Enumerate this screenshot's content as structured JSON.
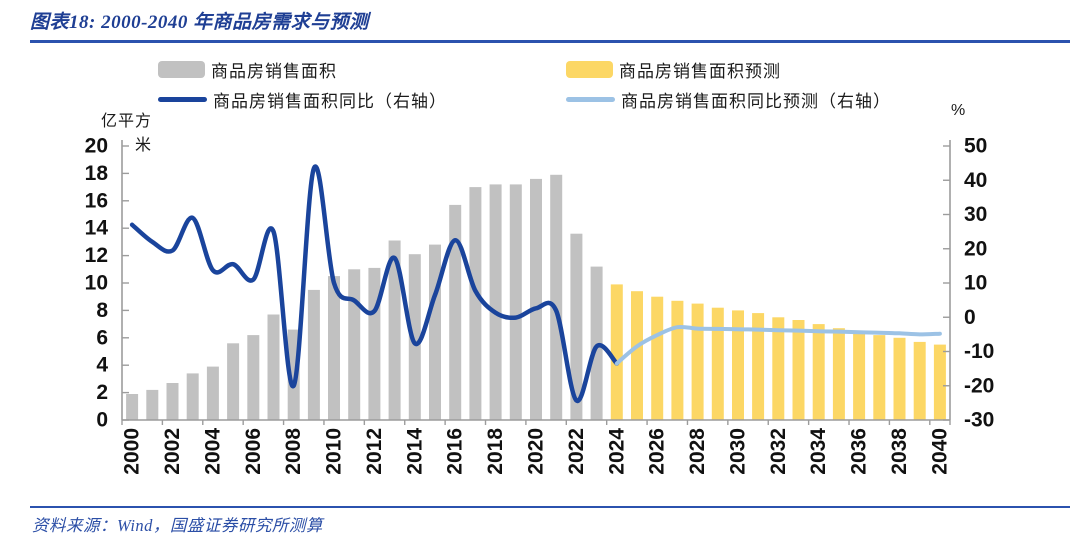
{
  "figure": {
    "title": "图表18: 2000-2040 年商品房需求与预测",
    "source": "资料来源：Wind，国盛证券研究所测算"
  },
  "colors": {
    "accent_blue": "#2b52ae",
    "bar_actual": "#c1c1c1",
    "bar_forecast": "#fcd765",
    "line_actual": "#1a449c",
    "line_forecast": "#9cc2e5",
    "axis_line": "#9c9c9c",
    "tick_label": "#111111"
  },
  "legend": [
    {
      "label": "商品房销售面积",
      "type": "bar",
      "color": "#c1c1c1"
    },
    {
      "label": "商品房销售面积预测",
      "type": "bar",
      "color": "#fcd765"
    },
    {
      "label": "商品房销售面积同比（右轴）",
      "type": "line",
      "color": "#1a449c"
    },
    {
      "label": "商品房销售面积同比预测（右轴）",
      "type": "line",
      "color": "#9cc2e5"
    }
  ],
  "chart_data": {
    "type": "bar",
    "subtype": "combo-bar-line",
    "title": "2000-2040 年商品房需求与预测",
    "left_axis": {
      "unit": "亿平方米",
      "min": 0,
      "max": 20,
      "step": 2,
      "ticks": [
        0,
        2,
        4,
        6,
        8,
        10,
        12,
        14,
        16,
        18,
        20
      ]
    },
    "right_axis": {
      "unit": "%",
      "min": -30,
      "max": 50,
      "step": 10,
      "ticks": [
        -30,
        -20,
        -10,
        0,
        10,
        20,
        30,
        40,
        50
      ]
    },
    "x_start": 2000,
    "x_end": 2040,
    "x_tick_labels": [
      "2000",
      "2002",
      "2004",
      "2006",
      "2008",
      "2010",
      "2012",
      "2014",
      "2016",
      "2018",
      "2020",
      "2022",
      "2024",
      "2026",
      "2028",
      "2030",
      "2032",
      "2034",
      "2036",
      "2038",
      "2040"
    ],
    "grid": false,
    "legend_position": "top",
    "series": [
      {
        "name": "商品房销售面积",
        "type": "bar",
        "axis": "left",
        "start_year": 2000,
        "values": [
          1.9,
          2.2,
          2.7,
          3.4,
          3.9,
          5.6,
          6.2,
          7.7,
          6.6,
          9.5,
          10.5,
          11.0,
          11.1,
          13.1,
          12.1,
          12.8,
          15.7,
          17.0,
          17.2,
          17.2,
          17.6,
          17.9,
          13.6,
          11.2
        ]
      },
      {
        "name": "商品房销售面积预测",
        "type": "bar",
        "axis": "left",
        "start_year": 2024,
        "values": [
          9.9,
          9.4,
          9.0,
          8.7,
          8.5,
          8.2,
          8.0,
          7.8,
          7.5,
          7.3,
          7.0,
          6.7,
          6.5,
          6.2,
          6.0,
          5.7,
          5.5
        ]
      },
      {
        "name": "商品房销售面积同比（右轴）",
        "type": "line",
        "axis": "right",
        "start_year": 2000,
        "values": [
          27,
          22,
          19.5,
          29,
          13.7,
          15.5,
          11,
          25,
          -20,
          43.5,
          10,
          4.9,
          1.8,
          17.3,
          -7.6,
          6.5,
          22.5,
          7.7,
          1.3,
          -0.1,
          2.6,
          1.9,
          -24.3,
          -8.5,
          -13.5
        ]
      },
      {
        "name": "商品房销售面积同比预测（右轴）",
        "type": "line",
        "axis": "right",
        "start_year": 2024,
        "values": [
          -13.5,
          -8.5,
          -5.2,
          -2.9,
          -3.3,
          -3.4,
          -3.5,
          -3.6,
          -3.8,
          -3.9,
          -4.1,
          -4.2,
          -4.4,
          -4.5,
          -4.7,
          -5.0,
          -4.8
        ]
      }
    ]
  }
}
